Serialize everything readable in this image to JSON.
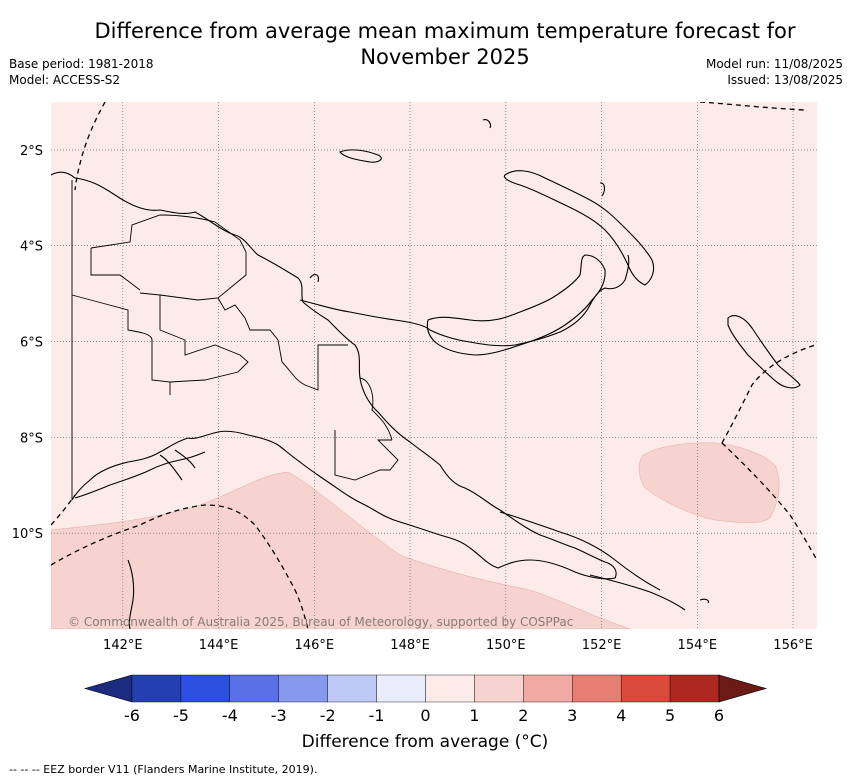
{
  "header": {
    "title_line1": "Difference from average mean maximum temperature forecast for",
    "title_line2": "November 2025",
    "base_period": "Base period: 1981-2018",
    "model": "Model: ACCESS-S2",
    "model_run": "Model run: 11/08/2025",
    "issued": "Issued: 13/08/2025"
  },
  "map": {
    "lat_labels": [
      "2°S",
      "4°S",
      "6°S",
      "8°S",
      "10°S"
    ],
    "lon_labels": [
      "142°E",
      "144°E",
      "146°E",
      "148°E",
      "150°E",
      "152°E",
      "154°E",
      "156°E"
    ],
    "lat_values": [
      -2,
      -4,
      -6,
      -8,
      -10
    ],
    "lon_values": [
      142,
      144,
      146,
      148,
      150,
      152,
      154,
      156
    ],
    "extent": {
      "lon_min": 140.5,
      "lon_max": 156.5,
      "lat_min": -12,
      "lat_max": -1
    },
    "copyright": "© Commonwealth of Australia 2025, Bureau of Meteorology, supported by COSPPac",
    "background_category": "0 to 1",
    "anomaly_regions": [
      "1 to 2 (south-west Coral Sea)",
      "1 to 2 (east of Papua New Guinea near 154°E 9°S)"
    ]
  },
  "colorbar": {
    "tick_labels": [
      "-6",
      "-5",
      "-4",
      "-3",
      "-2",
      "-1",
      "0",
      "1",
      "2",
      "3",
      "4",
      "5",
      "6"
    ],
    "colors": [
      "#2440b0",
      "#2d4fe0",
      "#5a70e6",
      "#8799ec",
      "#bfc9f5",
      "#e8ecfb",
      "#fcebe9",
      "#f6d3cf",
      "#f0aaa3",
      "#e77e74",
      "#d94a3d",
      "#ad2820"
    ],
    "extend_low_color": "#1b2b80",
    "extend_high_color": "#6b1a15",
    "title": "Difference from average (°C)"
  },
  "footer": {
    "legend_text": "-- -- -- EEZ border V11 (Flanders Marine Institute, 2019)."
  }
}
